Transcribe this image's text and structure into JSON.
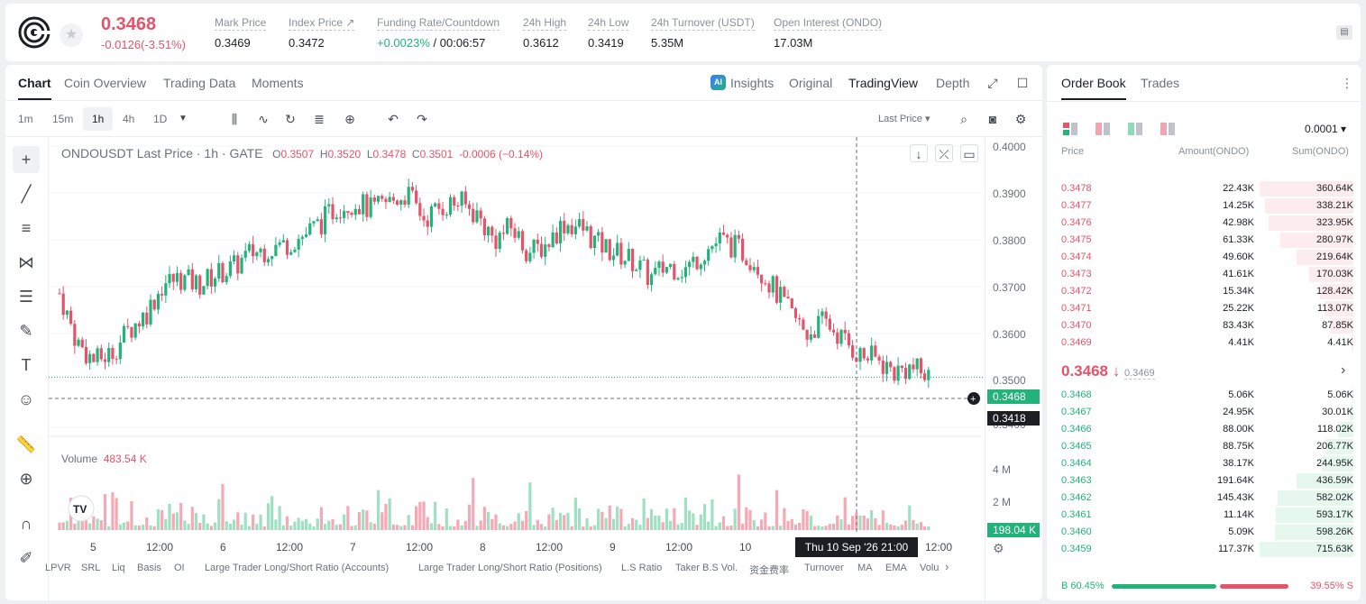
{
  "header": {
    "price": "0.3468",
    "change": "-0.0126(-3.51%)",
    "stats": [
      {
        "label": "Mark Price",
        "value": "0.3469"
      },
      {
        "label": "Index Price ↗",
        "value": "0.3472"
      },
      {
        "label": "Funding Rate/Countdown",
        "value_green": "+0.0023%",
        "value": " / 00:06:57"
      },
      {
        "label": "24h High",
        "value": "0.3612"
      },
      {
        "label": "24h Low",
        "value": "0.3419"
      },
      {
        "label": "24h Turnover (USDT)",
        "value": "5.35M"
      },
      {
        "label": "Open Interest (ONDO)",
        "value": "17.03M"
      }
    ]
  },
  "chart_tabs": [
    "Chart",
    "Coin Overview",
    "Trading Data",
    "Moments"
  ],
  "view_tabs": {
    "ai": "AI",
    "insights": "Insights",
    "original": "Original",
    "tradingview": "TradingView",
    "depth": "Depth"
  },
  "timeframes": [
    "1m",
    "15m",
    "1h",
    "4h",
    "1D"
  ],
  "price_source": "Last Price ▾",
  "legend": {
    "symbol": "ONDOUSDT Last Price · 1h · GATE",
    "o_label": "O",
    "o": "0.3507",
    "h_label": "H",
    "h": "0.3520",
    "l_label": "L",
    "l": "0.3478",
    "c_label": "C",
    "c": "0.3501",
    "chg": "-0.0006 (−0.14%)"
  },
  "volume": {
    "label": "Volume",
    "value": "483.54 K",
    "tag": "198.04 K",
    "ticks": [
      "4 M",
      "2 M"
    ]
  },
  "y_ticks": [
    "0.4000",
    "0.3900",
    "0.3800",
    "0.3700",
    "0.3600",
    "0.3500",
    "0.3400"
  ],
  "last_price_tag": "0.3468",
  "cross_price_tag": "0.3418",
  "x_labels": [
    "5",
    "12:00",
    "6",
    "12:00",
    "7",
    "12:00",
    "8",
    "12:00",
    "9",
    "12:00",
    "10",
    "12:00"
  ],
  "crosshair_time": "Thu 10 Sep '26   21:00",
  "indicators": [
    "LPVR",
    "SRL",
    "Liq",
    "Basis",
    "OI",
    "Large Trader Long/Short Ratio (Accounts)",
    "Large Trader Long/Short Ratio (Positions)",
    "L.S Ratio",
    "Taker B.S Vol.",
    "资金费率",
    "Turnover",
    "MA",
    "EMA",
    "Volu"
  ],
  "chart_data": {
    "type": "candlestick",
    "ylim": [
      0.338,
      0.4015
    ],
    "y_ticks": [
      0.4,
      0.39,
      0.38,
      0.37,
      0.36,
      0.35,
      0.34
    ],
    "x_labels": [
      "5",
      "12:00",
      "6",
      "12:00",
      "7",
      "12:00",
      "8",
      "12:00",
      "9",
      "12:00",
      "10",
      "12:00"
    ],
    "close_path": [
      0.3665,
      0.355,
      0.3505,
      0.3525,
      0.358,
      0.362,
      0.369,
      0.37,
      0.3685,
      0.371,
      0.3725,
      0.376,
      0.377,
      0.378,
      0.38,
      0.383,
      0.387,
      0.388,
      0.386,
      0.388,
      0.39,
      0.384,
      0.387,
      0.388,
      0.385,
      0.379,
      0.382,
      0.376,
      0.378,
      0.383,
      0.382,
      0.378,
      0.376,
      0.374,
      0.37,
      0.373,
      0.372,
      0.376,
      0.379,
      0.377,
      0.374,
      0.368,
      0.362,
      0.357,
      0.36,
      0.356,
      0.352,
      0.351,
      0.348,
      0.349,
      0.3468
    ],
    "last_price": 0.3468,
    "volume_max_label": "4 M"
  },
  "orderbook": {
    "tabs": [
      "Order Book",
      "Trades"
    ],
    "precision": "0.0001 ▾",
    "columns": [
      "Price",
      "Amount(ONDO)",
      "Sum(ONDO)"
    ],
    "asks": [
      {
        "price": "0.3478",
        "amount": "22.43K",
        "sum": "360.64K",
        "depth": 1.0
      },
      {
        "price": "0.3477",
        "amount": "14.25K",
        "sum": "338.21K",
        "depth": 0.94
      },
      {
        "price": "0.3476",
        "amount": "42.98K",
        "sum": "323.95K",
        "depth": 0.9
      },
      {
        "price": "0.3475",
        "amount": "61.33K",
        "sum": "280.97K",
        "depth": 0.78
      },
      {
        "price": "0.3474",
        "amount": "49.60K",
        "sum": "219.64K",
        "depth": 0.61
      },
      {
        "price": "0.3473",
        "amount": "41.61K",
        "sum": "170.03K",
        "depth": 0.47
      },
      {
        "price": "0.3472",
        "amount": "15.34K",
        "sum": "128.42K",
        "depth": 0.36
      },
      {
        "price": "0.3471",
        "amount": "25.22K",
        "sum": "113.07K",
        "depth": 0.31
      },
      {
        "price": "0.3470",
        "amount": "83.43K",
        "sum": "87.85K",
        "depth": 0.24
      },
      {
        "price": "0.3469",
        "amount": "4.41K",
        "sum": "4.41K",
        "depth": 0.02
      }
    ],
    "mid_price": "0.3468 ↓",
    "mark": "0.3469",
    "bids": [
      {
        "price": "0.3468",
        "amount": "5.06K",
        "sum": "5.06K",
        "depth": 0.01
      },
      {
        "price": "0.3467",
        "amount": "24.95K",
        "sum": "30.01K",
        "depth": 0.04
      },
      {
        "price": "0.3466",
        "amount": "88.00K",
        "sum": "118.02K",
        "depth": 0.16
      },
      {
        "price": "0.3465",
        "amount": "88.75K",
        "sum": "206.77K",
        "depth": 0.29
      },
      {
        "price": "0.3464",
        "amount": "38.17K",
        "sum": "244.95K",
        "depth": 0.34
      },
      {
        "price": "0.3463",
        "amount": "191.64K",
        "sum": "436.59K",
        "depth": 0.61
      },
      {
        "price": "0.3462",
        "amount": "145.43K",
        "sum": "582.02K",
        "depth": 0.81
      },
      {
        "price": "0.3461",
        "amount": "11.14K",
        "sum": "593.17K",
        "depth": 0.83
      },
      {
        "price": "0.3460",
        "amount": "5.09K",
        "sum": "598.26K",
        "depth": 0.84
      },
      {
        "price": "0.3459",
        "amount": "117.37K",
        "sum": "715.63K",
        "depth": 1.0
      }
    ],
    "buy_ratio": "B 60.45%",
    "sell_ratio": "39.55% S",
    "buy_fraction": 0.6045
  },
  "colors": {
    "up": "#21b37a",
    "down": "#e5536a"
  }
}
